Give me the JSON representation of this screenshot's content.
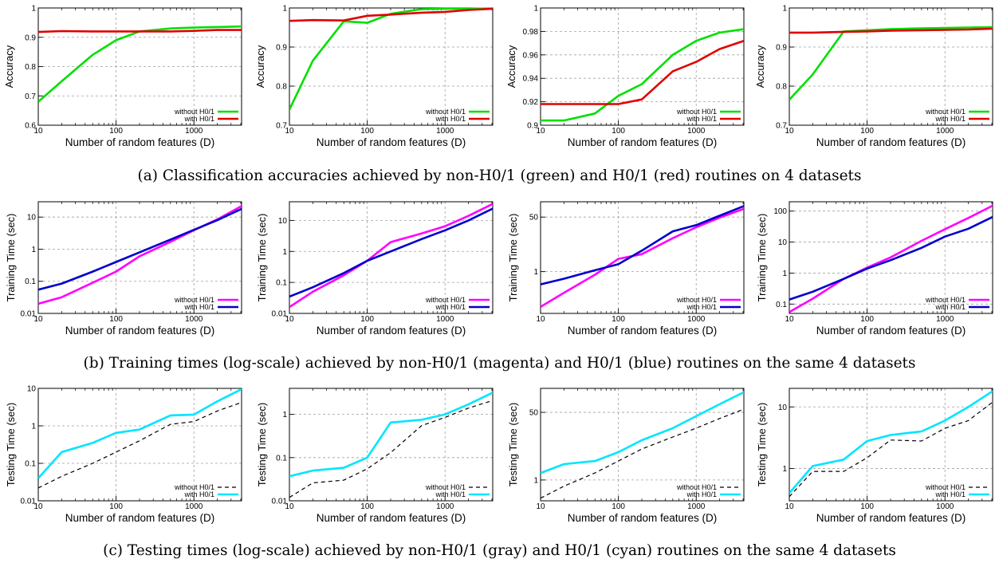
{
  "figure": {
    "captions": [
      "(a) Classification accuracies achieved by non-H0/1 (green) and H0/1 (red) routines on 4 datasets",
      "(b) Training times (log-scale) achieved by non-H0/1 (magenta) and H0/1 (blue) routines on the same 4 datasets",
      "(c) Testing times (log-scale) achieved by non-H0/1 (gray) and H0/1 (cyan) routines on the same 4 datasets"
    ]
  },
  "chart_data": [
    {
      "type": "line",
      "row": 0,
      "col": 0,
      "xlabel": "Number of random features (D)",
      "ylabel": "Accuracy",
      "xscale": "log",
      "xlim": [
        10,
        4096
      ],
      "yscale": "linear",
      "ylim": [
        0.6,
        1
      ],
      "yticks": [
        0.6,
        0.7,
        0.8,
        0.9,
        1
      ],
      "ytick_labels": [
        "0.6",
        "0.7",
        "0.8",
        "0.9",
        "1"
      ],
      "xticks": [
        10,
        100,
        1000
      ],
      "xtick_labels": [
        "10",
        "100",
        "1000"
      ],
      "grid": true,
      "legend": "bottom-right",
      "x": [
        10,
        20,
        50,
        100,
        200,
        500,
        1000,
        2000,
        4096
      ],
      "series": [
        {
          "name": "without H0/1",
          "color": "#00e000",
          "dash": "none",
          "values": [
            0.68,
            0.75,
            0.84,
            0.89,
            0.92,
            0.93,
            0.933,
            0.935,
            0.937
          ]
        },
        {
          "name": "with H0/1",
          "color": "#e00000",
          "dash": "none",
          "values": [
            0.918,
            0.921,
            0.92,
            0.92,
            0.92,
            0.92,
            0.922,
            0.925,
            0.925
          ]
        }
      ]
    },
    {
      "type": "line",
      "row": 0,
      "col": 1,
      "xlabel": "Number of random features (D)",
      "ylabel": "Accuracy",
      "xscale": "log",
      "xlim": [
        10,
        4096
      ],
      "yscale": "linear",
      "ylim": [
        0.7,
        1
      ],
      "yticks": [
        0.7,
        0.8,
        0.9,
        1
      ],
      "ytick_labels": [
        "0.7",
        "0.8",
        "0.9",
        "1"
      ],
      "xticks": [
        10,
        100,
        1000
      ],
      "xtick_labels": [
        "10",
        "100",
        "1000"
      ],
      "grid": true,
      "legend": "bottom-right",
      "x": [
        10,
        20,
        50,
        100,
        200,
        500,
        1000,
        2000,
        4096
      ],
      "series": [
        {
          "name": "without H0/1",
          "color": "#00e000",
          "dash": "none",
          "values": [
            0.74,
            0.865,
            0.966,
            0.962,
            0.985,
            0.997,
            0.998,
            0.998,
            0.999
          ]
        },
        {
          "name": "with H0/1",
          "color": "#e00000",
          "dash": "none",
          "values": [
            0.967,
            0.969,
            0.968,
            0.98,
            0.983,
            0.988,
            0.99,
            0.995,
            0.998
          ]
        }
      ]
    },
    {
      "type": "line",
      "row": 0,
      "col": 2,
      "xlabel": "Number of random features (D)",
      "ylabel": "Accuracy",
      "xscale": "log",
      "xlim": [
        10,
        4096
      ],
      "yscale": "linear",
      "ylim": [
        0.9,
        1
      ],
      "yticks": [
        0.9,
        0.92,
        0.94,
        0.96,
        0.98,
        1
      ],
      "ytick_labels": [
        "0.9",
        "0.92",
        "0.94",
        "0.96",
        "0.98",
        "1"
      ],
      "xticks": [
        10,
        100,
        1000
      ],
      "xtick_labels": [
        "10",
        "100",
        "1000"
      ],
      "grid": true,
      "legend": "bottom-right",
      "x": [
        10,
        20,
        50,
        100,
        200,
        500,
        1000,
        2000,
        4096
      ],
      "series": [
        {
          "name": "without H0/1",
          "color": "#00e000",
          "dash": "none",
          "values": [
            0.904,
            0.904,
            0.91,
            0.925,
            0.935,
            0.96,
            0.972,
            0.979,
            0.982
          ]
        },
        {
          "name": "with H0/1",
          "color": "#e00000",
          "dash": "none",
          "values": [
            0.918,
            0.918,
            0.918,
            0.918,
            0.922,
            0.946,
            0.954,
            0.965,
            0.972
          ]
        }
      ]
    },
    {
      "type": "line",
      "row": 0,
      "col": 3,
      "xlabel": "Number of random features (D)",
      "ylabel": "Accuracy",
      "xscale": "log",
      "xlim": [
        10,
        4096
      ],
      "yscale": "linear",
      "ylim": [
        0.7,
        1
      ],
      "yticks": [
        0.7,
        0.8,
        0.9,
        1
      ],
      "ytick_labels": [
        "0.7",
        "0.8",
        "0.9",
        "1"
      ],
      "xticks": [
        10,
        100,
        1000
      ],
      "xtick_labels": [
        "10",
        "100",
        "1000"
      ],
      "grid": true,
      "legend": "bottom-right",
      "x": [
        10,
        20,
        50,
        100,
        200,
        500,
        1000,
        2000,
        4096
      ],
      "series": [
        {
          "name": "without H0/1",
          "color": "#00e000",
          "dash": "none",
          "values": [
            0.765,
            0.83,
            0.94,
            0.943,
            0.946,
            0.948,
            0.949,
            0.95,
            0.951
          ]
        },
        {
          "name": "with H0/1",
          "color": "#e00000",
          "dash": "none",
          "values": [
            0.937,
            0.937,
            0.939,
            0.94,
            0.942,
            0.943,
            0.944,
            0.945,
            0.947
          ]
        }
      ]
    },
    {
      "type": "line",
      "row": 1,
      "col": 0,
      "xlabel": "Number of random features (D)",
      "ylabel": "Training Time (sec)",
      "xscale": "log",
      "xlim": [
        10,
        4096
      ],
      "yscale": "log",
      "ylim": [
        0.01,
        30
      ],
      "yticks": [
        0.01,
        0.1,
        1,
        10
      ],
      "ytick_labels": [
        "0.01",
        "0.1",
        "1",
        "10"
      ],
      "xticks": [
        10,
        100,
        1000
      ],
      "xtick_labels": [
        "10",
        "100",
        "1000"
      ],
      "grid": true,
      "legend": "bottom-right",
      "x": [
        10,
        20,
        50,
        100,
        200,
        500,
        1000,
        2000,
        4096
      ],
      "series": [
        {
          "name": "without H0/1",
          "color": "#ff00ff",
          "dash": "none",
          "values": [
            0.02,
            0.032,
            0.09,
            0.2,
            0.6,
            1.7,
            3.9,
            8.5,
            22
          ]
        },
        {
          "name": "with H0/1",
          "color": "#0000cc",
          "dash": "none",
          "values": [
            0.055,
            0.085,
            0.2,
            0.4,
            0.8,
            2.0,
            4.0,
            8.0,
            18
          ]
        }
      ]
    },
    {
      "type": "line",
      "row": 1,
      "col": 1,
      "xlabel": "Number of random features (D)",
      "ylabel": "Training Time (sec)",
      "xscale": "log",
      "xlim": [
        10,
        4096
      ],
      "yscale": "log",
      "ylim": [
        0.01,
        40
      ],
      "yticks": [
        0.01,
        0.1,
        1,
        10
      ],
      "ytick_labels": [
        "0.01",
        "0.1",
        "1",
        "10"
      ],
      "xticks": [
        10,
        100,
        1000
      ],
      "xtick_labels": [
        "10",
        "100",
        "1000"
      ],
      "grid": true,
      "legend": "bottom-right",
      "x": [
        10,
        20,
        50,
        100,
        200,
        500,
        1000,
        2000,
        4096
      ],
      "series": [
        {
          "name": "without H0/1",
          "color": "#ff00ff",
          "dash": "none",
          "values": [
            0.016,
            0.05,
            0.17,
            0.5,
            2.0,
            3.8,
            6.5,
            14,
            34
          ]
        },
        {
          "name": "with H0/1",
          "color": "#0000cc",
          "dash": "none",
          "values": [
            0.035,
            0.07,
            0.2,
            0.5,
            1.0,
            2.5,
            4.8,
            10,
            24
          ]
        }
      ]
    },
    {
      "type": "line",
      "row": 1,
      "col": 2,
      "xlabel": "Number of random features (D)",
      "ylabel": "Training Time (sec)",
      "xscale": "log",
      "xlim": [
        10,
        4096
      ],
      "yscale": "log",
      "ylim": [
        0.05,
        150
      ],
      "yticks": [
        1,
        50
      ],
      "ytick_labels": [
        "1",
        "50"
      ],
      "xticks": [
        10,
        100,
        1000
      ],
      "xtick_labels": [
        "10",
        "100",
        "1000"
      ],
      "grid": true,
      "legend": "bottom-right",
      "x": [
        10,
        20,
        50,
        100,
        200,
        500,
        1000,
        2000,
        4096
      ],
      "series": [
        {
          "name": "without H0/1",
          "color": "#ff00ff",
          "dash": "none",
          "values": [
            0.08,
            0.22,
            0.8,
            2.5,
            3.5,
            11,
            24,
            48,
            90
          ]
        },
        {
          "name": "with H0/1",
          "color": "#0000cc",
          "dash": "none",
          "values": [
            0.4,
            0.6,
            1.1,
            1.7,
            4.5,
            18,
            28,
            55,
            110
          ]
        }
      ]
    },
    {
      "type": "line",
      "row": 1,
      "col": 3,
      "xlabel": "Number of random features (D)",
      "ylabel": "Training Time (sec)",
      "xscale": "log",
      "xlim": [
        10,
        4096
      ],
      "yscale": "log",
      "ylim": [
        0.05,
        200
      ],
      "yticks": [
        0.1,
        1,
        10,
        100
      ],
      "ytick_labels": [
        "0.1",
        "1",
        "10",
        "100"
      ],
      "xticks": [
        10,
        100,
        1000
      ],
      "xtick_labels": [
        "10",
        "100",
        "1000"
      ],
      "grid": true,
      "legend": "bottom-right",
      "x": [
        10,
        20,
        50,
        100,
        200,
        500,
        1000,
        2000,
        4096
      ],
      "series": [
        {
          "name": "without H0/1",
          "color": "#ff00ff",
          "dash": "none",
          "values": [
            0.055,
            0.15,
            0.65,
            1.5,
            3.2,
            11,
            26,
            60,
            150
          ]
        },
        {
          "name": "with H0/1",
          "color": "#0000cc",
          "dash": "none",
          "values": [
            0.14,
            0.25,
            0.65,
            1.4,
            2.6,
            6.5,
            15,
            27,
            65
          ]
        }
      ]
    },
    {
      "type": "line",
      "row": 2,
      "col": 0,
      "xlabel": "Number of random features (D)",
      "ylabel": "Testing Time (sec)",
      "xscale": "log",
      "xlim": [
        10,
        4096
      ],
      "yscale": "log",
      "ylim": [
        0.01,
        10
      ],
      "yticks": [
        0.01,
        0.1,
        1,
        10
      ],
      "ytick_labels": [
        "0.01",
        "0.1",
        "1",
        "10"
      ],
      "xticks": [
        10,
        100,
        1000
      ],
      "xtick_labels": [
        "10",
        "100",
        "1000"
      ],
      "grid": true,
      "legend": "bottom-right",
      "x": [
        10,
        20,
        50,
        100,
        200,
        500,
        1000,
        2000,
        4096
      ],
      "series": [
        {
          "name": "without H0/1",
          "color": "#000000",
          "dash": "dashed",
          "values": [
            0.022,
            0.045,
            0.1,
            0.2,
            0.4,
            1.1,
            1.3,
            2.5,
            4.2
          ]
        },
        {
          "name": "with H0/1",
          "color": "#00e5ff",
          "dash": "none",
          "values": [
            0.04,
            0.2,
            0.35,
            0.65,
            0.8,
            1.9,
            2.0,
            4.5,
            9.5
          ]
        }
      ]
    },
    {
      "type": "line",
      "row": 2,
      "col": 1,
      "xlabel": "Number of random features (D)",
      "ylabel": "Testing Time (sec)",
      "xscale": "log",
      "xlim": [
        10,
        4096
      ],
      "yscale": "log",
      "ylim": [
        0.01,
        4
      ],
      "yticks": [
        0.01,
        0.1,
        1
      ],
      "ytick_labels": [
        "0.01",
        "0.1",
        "1"
      ],
      "xticks": [
        10,
        100,
        1000
      ],
      "xtick_labels": [
        "10",
        "100",
        "1000"
      ],
      "grid": true,
      "legend": "bottom-right",
      "x": [
        10,
        20,
        50,
        100,
        200,
        500,
        1000,
        2000,
        4096
      ],
      "series": [
        {
          "name": "without H0/1",
          "color": "#000000",
          "dash": "dashed",
          "values": [
            0.012,
            0.026,
            0.03,
            0.055,
            0.13,
            0.55,
            0.85,
            1.4,
            2.1
          ]
        },
        {
          "name": "with H0/1",
          "color": "#00e5ff",
          "dash": "none",
          "values": [
            0.037,
            0.05,
            0.058,
            0.1,
            0.65,
            0.75,
            1.0,
            1.7,
            3.2
          ]
        }
      ]
    },
    {
      "type": "line",
      "row": 2,
      "col": 2,
      "xlabel": "Number of random features (D)",
      "ylabel": "Testing Time (sec)",
      "xscale": "log",
      "xlim": [
        10,
        4096
      ],
      "yscale": "log",
      "ylim": [
        0.3,
        200
      ],
      "yticks": [
        1,
        50
      ],
      "ytick_labels": [
        "1",
        "50"
      ],
      "xticks": [
        10,
        100,
        1000
      ],
      "xtick_labels": [
        "10",
        "100",
        "1000"
      ],
      "grid": true,
      "legend": "bottom-right",
      "x": [
        10,
        20,
        50,
        100,
        200,
        500,
        1000,
        2000,
        4096
      ],
      "series": [
        {
          "name": "without H0/1",
          "color": "#000000",
          "dash": "dashed",
          "values": [
            0.35,
            0.7,
            1.5,
            3.0,
            6.0,
            12,
            20,
            35,
            60
          ]
        },
        {
          "name": "with H0/1",
          "color": "#00e5ff",
          "dash": "none",
          "values": [
            1.5,
            2.5,
            3.0,
            5.0,
            10,
            20,
            40,
            80,
            160
          ]
        }
      ]
    },
    {
      "type": "line",
      "row": 2,
      "col": 3,
      "xlabel": "Number of random features (D)",
      "ylabel": "Testing Time (sec)",
      "xscale": "log",
      "xlim": [
        10,
        4096
      ],
      "yscale": "log",
      "ylim": [
        0.3,
        20
      ],
      "yticks": [
        1,
        10
      ],
      "ytick_labels": [
        "1",
        "10"
      ],
      "xticks": [
        10,
        100,
        1000
      ],
      "xtick_labels": [
        "10",
        "100",
        "1000"
      ],
      "grid": true,
      "legend": "bottom-right",
      "x": [
        10,
        20,
        50,
        100,
        200,
        500,
        1000,
        2000,
        4096
      ],
      "series": [
        {
          "name": "without H0/1",
          "color": "#000000",
          "dash": "dashed",
          "values": [
            0.35,
            0.9,
            0.9,
            1.5,
            2.9,
            2.8,
            4.5,
            6.0,
            12
          ]
        },
        {
          "name": "with H0/1",
          "color": "#00e5ff",
          "dash": "none",
          "values": [
            0.4,
            1.1,
            1.4,
            2.8,
            3.5,
            4.0,
            6.0,
            10,
            18
          ]
        }
      ]
    }
  ]
}
